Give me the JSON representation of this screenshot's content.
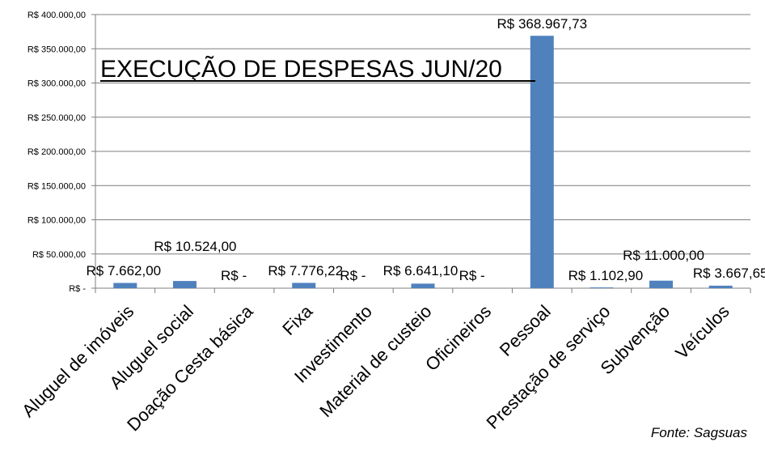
{
  "chart_data": {
    "type": "bar",
    "title": "EXECUÇÃO  DE DESPESAS JUN/20",
    "source": "Fonte: Sagsuas",
    "categories": [
      "Aluguel de imóveis",
      "Aluguel social",
      "Doação Cesta básica",
      "Fixa",
      "Investimento",
      "Material de custeio",
      "Oficineiros",
      "Pessoal",
      "Prestação de serviço",
      "Subvenção",
      "Veículos"
    ],
    "values": [
      7662.0,
      10524.0,
      0,
      7776.22,
      0,
      6641.1,
      0,
      368967.73,
      1102.9,
      11000.0,
      3667.65
    ],
    "data_labels": [
      "R$ 7.662,00",
      "R$ 10.524,00",
      "R$ -",
      "R$ 7.776,22",
      "R$ -",
      "R$ 6.641,10",
      "R$ -",
      "R$ 368.967,73",
      "R$ 1.102,90",
      "R$ 11.000,00",
      "R$ 3.667,65"
    ],
    "ylim": [
      0,
      400000
    ],
    "yticks": [
      0,
      50000,
      100000,
      150000,
      200000,
      250000,
      300000,
      350000,
      400000
    ],
    "ytick_labels": [
      "R$ -",
      "R$ 50.000,00",
      "R$ 100.000,00",
      "R$ 150.000,00",
      "R$ 200.000,00",
      "R$ 250.000,00",
      "R$ 300.000,00",
      "R$ 350.000,00",
      "R$ 400.000,00"
    ],
    "xlabel": "",
    "ylabel": "",
    "grid": true,
    "bar_color": "#4f81bd",
    "grid_color": "#7f7f7f"
  }
}
